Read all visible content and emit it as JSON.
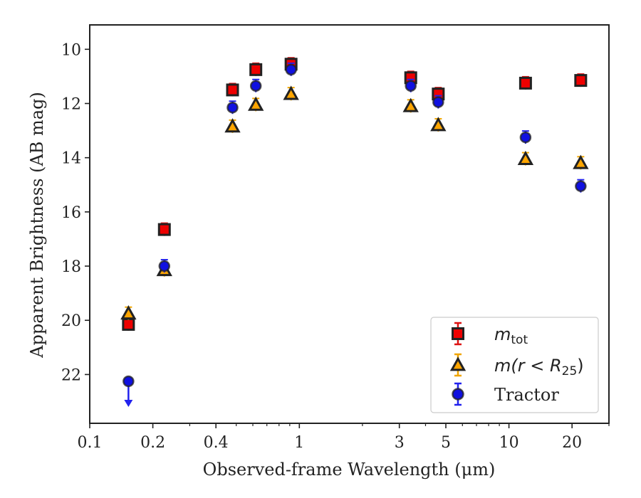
{
  "chart_data": {
    "type": "scatter",
    "title": "",
    "xlabel": "Observed-frame Wavelength (μm)",
    "ylabel": "Apparent Brightness (AB mag)",
    "xscale": "log",
    "xlim": [
      0.1,
      30
    ],
    "ylim": [
      23.8,
      9.1
    ],
    "y_inverted": true,
    "grid": false,
    "legend_position": "lower-right",
    "xticks": [
      {
        "value": 0.1,
        "label": "0.1"
      },
      {
        "value": 0.2,
        "label": "0.2"
      },
      {
        "value": 0.4,
        "label": "0.4"
      },
      {
        "value": 1,
        "label": "1"
      },
      {
        "value": 3,
        "label": "3"
      },
      {
        "value": 5,
        "label": "5"
      },
      {
        "value": 10,
        "label": "10"
      },
      {
        "value": 20,
        "label": "20"
      }
    ],
    "yticks": [
      {
        "value": 10,
        "label": "10"
      },
      {
        "value": 12,
        "label": "12"
      },
      {
        "value": 14,
        "label": "14"
      },
      {
        "value": 16,
        "label": "16"
      },
      {
        "value": 18,
        "label": "18"
      },
      {
        "value": 20,
        "label": "20"
      },
      {
        "value": 22,
        "label": "22"
      }
    ],
    "series": [
      {
        "name": "m_tot",
        "marker": "square",
        "color": "#ee0000",
        "errcolor": "#dd1111",
        "points": [
          {
            "x": 0.153,
            "y": 20.15
          },
          {
            "x": 0.227,
            "y": 16.65
          },
          {
            "x": 0.48,
            "y": 11.5
          },
          {
            "x": 0.62,
            "y": 10.75
          },
          {
            "x": 0.913,
            "y": 10.55
          },
          {
            "x": 3.4,
            "y": 11.05
          },
          {
            "x": 4.6,
            "y": 11.65
          },
          {
            "x": 12.0,
            "y": 11.25
          },
          {
            "x": 22.0,
            "y": 11.15
          }
        ]
      },
      {
        "name": "m(r < R25)",
        "marker": "triangle",
        "color": "#ffa500",
        "errcolor": "#f0a500",
        "points": [
          {
            "x": 0.153,
            "y": 19.75
          },
          {
            "x": 0.227,
            "y": 18.15
          },
          {
            "x": 0.48,
            "y": 12.85
          },
          {
            "x": 0.62,
            "y": 12.05
          },
          {
            "x": 0.913,
            "y": 11.65
          },
          {
            "x": 3.4,
            "y": 12.1
          },
          {
            "x": 4.6,
            "y": 12.8
          },
          {
            "x": 12.0,
            "y": 14.05
          },
          {
            "x": 22.0,
            "y": 14.2
          }
        ]
      },
      {
        "name": "Tractor",
        "marker": "circle",
        "color": "#1010e0",
        "errcolor": "#2222ee",
        "points": [
          {
            "x": 0.153,
            "y": 22.25,
            "upper_limit": true
          },
          {
            "x": 0.227,
            "y": 18.0
          },
          {
            "x": 0.48,
            "y": 12.15
          },
          {
            "x": 0.62,
            "y": 11.35
          },
          {
            "x": 0.913,
            "y": 10.75
          },
          {
            "x": 3.4,
            "y": 11.35
          },
          {
            "x": 4.6,
            "y": 11.95
          },
          {
            "x": 12.0,
            "y": 13.25
          },
          {
            "x": 22.0,
            "y": 15.05
          }
        ]
      }
    ],
    "legend": [
      {
        "text_main": "m",
        "text_sub": "tot"
      },
      {
        "text_main": "m(r < R",
        "text_sub": "25",
        "text_tail": ")"
      },
      {
        "text_main": "Tractor"
      }
    ]
  }
}
